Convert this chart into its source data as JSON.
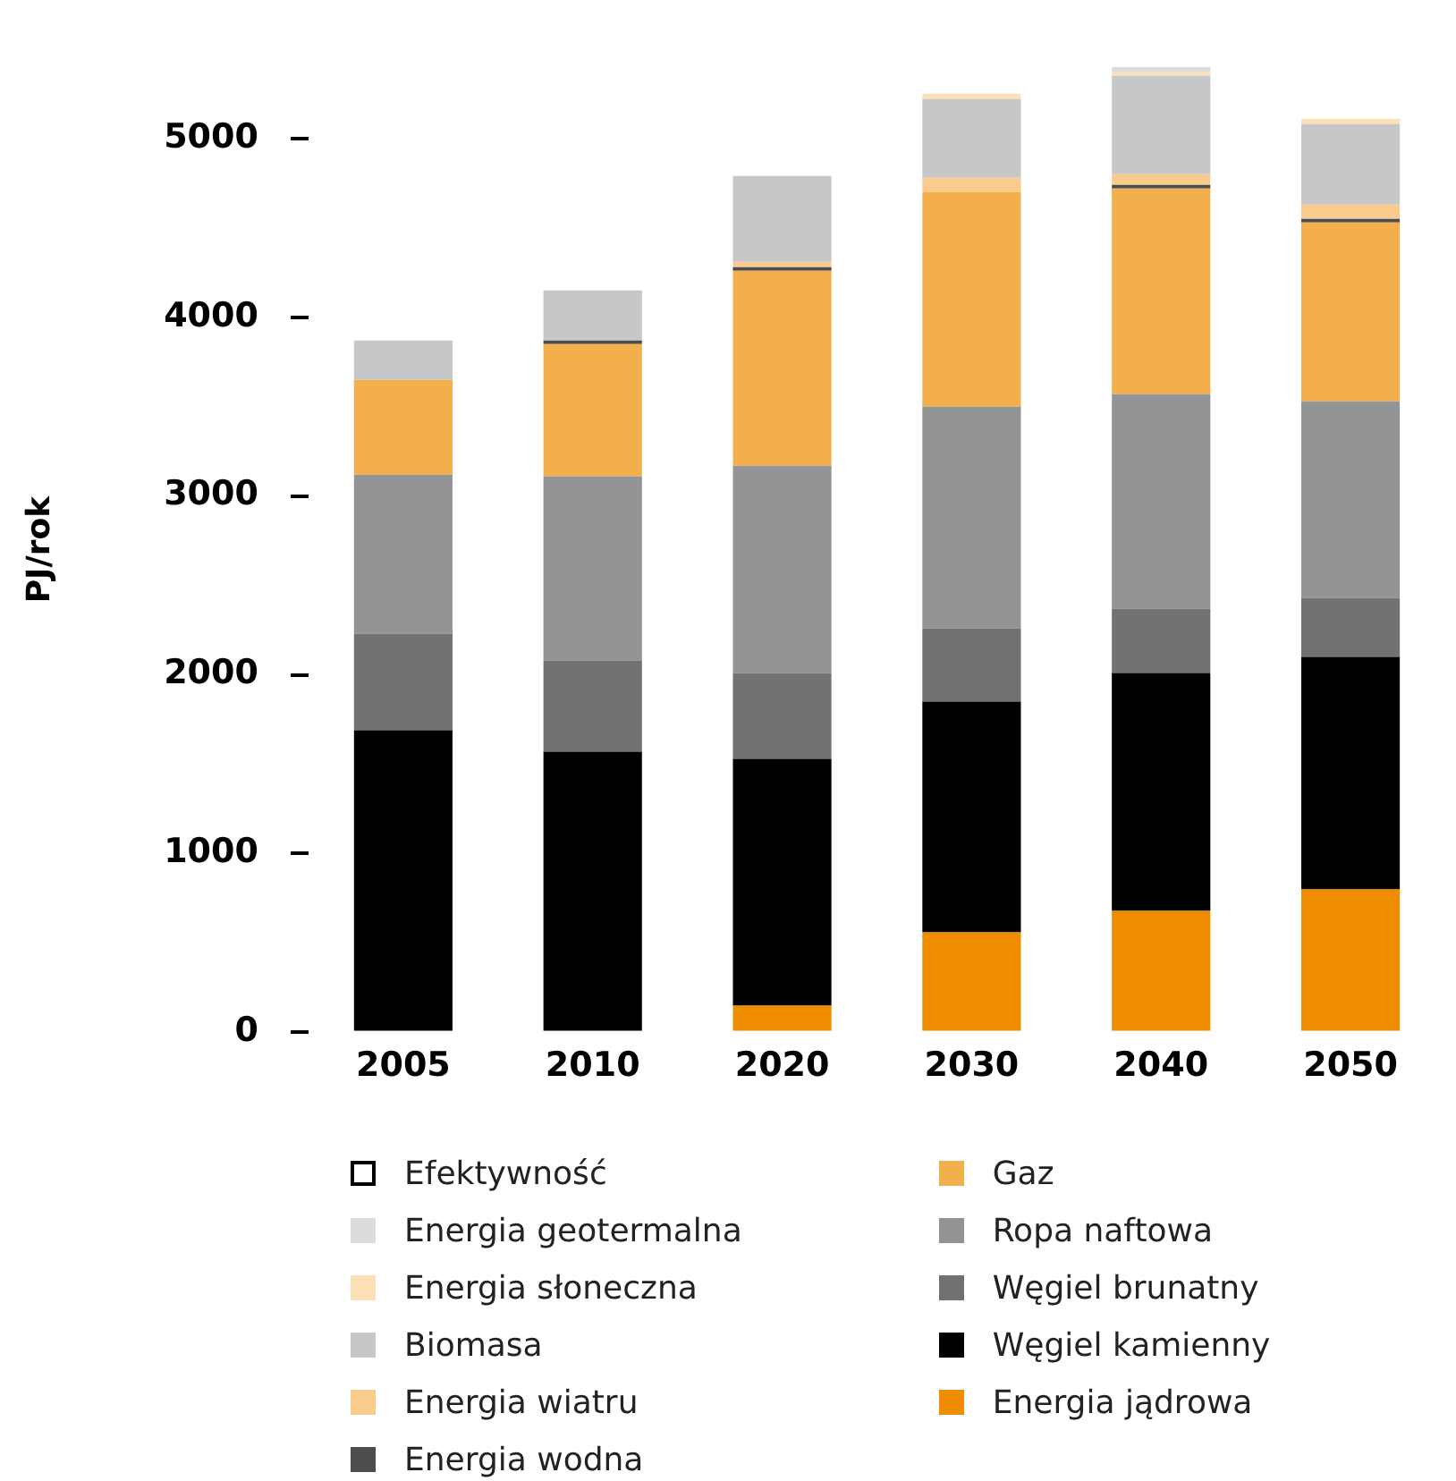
{
  "chart_data": {
    "type": "bar",
    "stacked": true,
    "ylabel": "PJ/rok",
    "categories": [
      "2005",
      "2010",
      "2020",
      "2030",
      "2040",
      "2050"
    ],
    "ylim": [
      0,
      5400
    ],
    "yticks": [
      0,
      1000,
      2000,
      3000,
      4000,
      5000
    ],
    "legend": "bottom",
    "series": [
      {
        "name": "Energia jądrowa",
        "color": "#f08c00",
        "values": [
          null,
          null,
          150,
          560,
          680,
          800
        ]
      },
      {
        "name": "Węgiel kamienny",
        "color": "#000000",
        "values": [
          1690,
          1570,
          1380,
          1290,
          1330,
          1300
        ]
      },
      {
        "name": "Węgiel brunatny",
        "color": "#717274",
        "values": [
          540,
          510,
          480,
          410,
          360,
          330
        ]
      },
      {
        "name": "Ropa naftowa",
        "color": "#939496",
        "values": [
          890,
          1030,
          1160,
          1240,
          1200,
          1100
        ]
      },
      {
        "name": "Gaz",
        "color": "#f4af4d",
        "values": [
          530,
          740,
          1090,
          1200,
          1150,
          1000
        ]
      },
      {
        "name": "Energia wodna",
        "color": "#4d4d4f",
        "values": [
          null,
          20,
          20,
          null,
          20,
          20
        ]
      },
      {
        "name": "Energia wiatru",
        "color": "#f9cb8c",
        "values": [
          null,
          null,
          30,
          80,
          60,
          80
        ]
      },
      {
        "name": "Biomasa",
        "color": "#c6c7c9",
        "values": [
          220,
          280,
          480,
          440,
          550,
          450
        ]
      },
      {
        "name": "Energia słoneczna",
        "color": "#fce0b8",
        "values": [
          null,
          null,
          null,
          30,
          20,
          30
        ]
      },
      {
        "name": "Energia geotermalna",
        "color": "#dcdcdd",
        "values": [
          null,
          null,
          null,
          null,
          30,
          null
        ]
      },
      {
        "name": "Efektywność",
        "color": "#ffffff",
        "values": [
          null,
          null,
          null,
          null,
          null,
          null
        ]
      }
    ]
  }
}
